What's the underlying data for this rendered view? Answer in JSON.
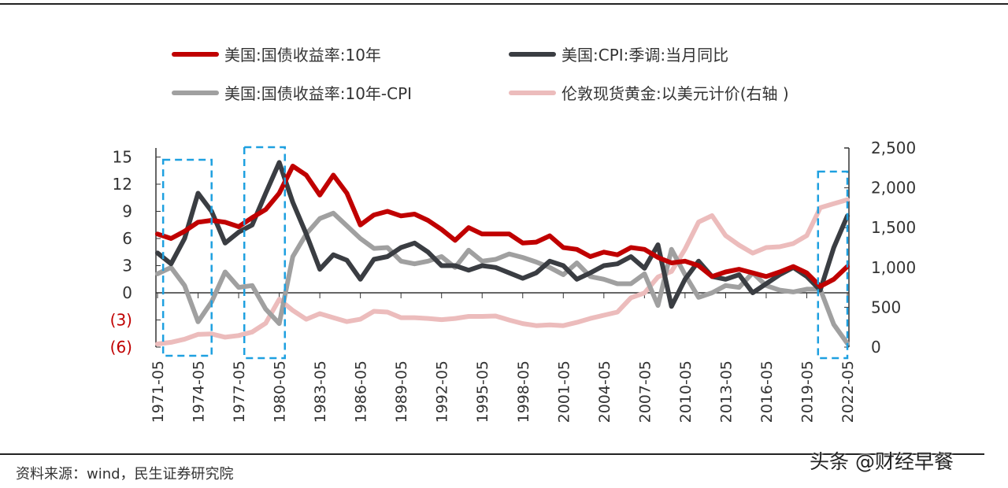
{
  "chart_data": {
    "type": "line",
    "legend_position": "top",
    "grid": false,
    "x": [
      "1971-05",
      "1972-05",
      "1973-05",
      "1974-05",
      "1975-05",
      "1976-05",
      "1977-05",
      "1978-05",
      "1979-05",
      "1980-05",
      "1981-05",
      "1982-05",
      "1983-05",
      "1984-05",
      "1985-05",
      "1986-05",
      "1987-05",
      "1988-05",
      "1989-05",
      "1990-05",
      "1991-05",
      "1992-05",
      "1993-05",
      "1994-05",
      "1995-05",
      "1996-05",
      "1997-05",
      "1998-05",
      "1999-05",
      "2000-05",
      "2001-05",
      "2002-05",
      "2003-05",
      "2004-05",
      "2005-05",
      "2006-05",
      "2007-05",
      "2008-05",
      "2009-05",
      "2010-05",
      "2011-05",
      "2012-05",
      "2013-05",
      "2014-05",
      "2015-05",
      "2016-05",
      "2017-05",
      "2018-05",
      "2019-05",
      "2020-05",
      "2021-05",
      "2022-05"
    ],
    "x_tick_labels": [
      "1971-05",
      "1974-05",
      "1977-05",
      "1980-05",
      "1983-05",
      "1986-05",
      "1989-05",
      "1992-05",
      "1995-05",
      "1998-05",
      "2001-05",
      "2004-05",
      "2007-05",
      "2010-05",
      "2013-05",
      "2016-05",
      "2019-05",
      "2022-05"
    ],
    "y_left": {
      "ylim": [
        -6,
        16
      ],
      "tick_values": [
        15,
        12,
        9,
        6,
        3,
        0,
        -3,
        -6
      ],
      "tick_labels": [
        "15",
        "12",
        "9",
        "6",
        "3",
        "0",
        "(3)",
        "(6)"
      ],
      "negative_label_color": "#c00000"
    },
    "y_right": {
      "ylim": [
        0,
        2500
      ],
      "tick_values": [
        2500,
        2000,
        1500,
        1000,
        500,
        0
      ],
      "tick_labels": [
        "2,500",
        "2,000",
        "1,500",
        "1,000",
        "500",
        "0"
      ]
    },
    "series": [
      {
        "name": "美国:国债收益率:10年",
        "color": "#c00000",
        "axis": "left",
        "values": [
          6.5,
          6.0,
          6.8,
          7.8,
          8.0,
          7.8,
          7.3,
          8.3,
          9.2,
          11.0,
          14.0,
          13.0,
          10.8,
          13.0,
          11.0,
          7.5,
          8.6,
          9.0,
          8.5,
          8.7,
          8.0,
          7.0,
          5.8,
          7.2,
          6.5,
          6.5,
          6.5,
          5.5,
          5.6,
          6.3,
          5.0,
          4.8,
          4.0,
          4.5,
          4.2,
          5.0,
          4.8,
          3.9,
          3.3,
          3.5,
          3.0,
          1.8,
          2.3,
          2.6,
          2.2,
          1.8,
          2.3,
          2.9,
          2.2,
          0.7,
          1.5,
          2.9
        ]
      },
      {
        "name": "美国:CPI:季调:当月同比",
        "color": "#3a3d42",
        "axis": "left",
        "values": [
          4.4,
          3.2,
          6.0,
          11.0,
          9.0,
          5.5,
          6.7,
          7.5,
          11.0,
          14.4,
          10.0,
          6.5,
          2.6,
          4.2,
          3.6,
          1.5,
          3.7,
          4.0,
          5.0,
          5.5,
          4.5,
          3.0,
          3.0,
          2.5,
          3.0,
          2.8,
          2.2,
          1.6,
          2.2,
          3.5,
          3.0,
          1.5,
          2.2,
          3.0,
          3.2,
          4.0,
          2.7,
          5.3,
          -1.5,
          1.5,
          3.5,
          1.8,
          1.5,
          2.0,
          0.0,
          1.0,
          2.0,
          2.8,
          1.8,
          0.3,
          5.0,
          8.5
        ]
      },
      {
        "name": "美国:国债收益率:10年-CPI",
        "color": "#a0a0a0",
        "axis": "left",
        "values": [
          2.1,
          2.8,
          0.8,
          -3.2,
          -1.0,
          2.3,
          0.6,
          0.8,
          -1.8,
          -3.4,
          4.0,
          6.5,
          8.2,
          8.8,
          7.4,
          6.0,
          4.9,
          5.0,
          3.5,
          3.2,
          3.5,
          4.0,
          2.8,
          4.7,
          3.5,
          3.7,
          4.3,
          3.9,
          3.4,
          2.8,
          2.0,
          3.3,
          1.8,
          1.5,
          1.0,
          1.0,
          2.1,
          -1.4,
          4.8,
          2.0,
          -0.5,
          0.0,
          0.8,
          0.6,
          2.2,
          0.8,
          0.3,
          0.1,
          0.4,
          0.4,
          -3.5,
          -5.6
        ]
      },
      {
        "name": "伦敦现货黄金:以美元计价(右轴 )",
        "color": "#ecbcbc",
        "axis": "right",
        "values": [
          40,
          60,
          100,
          160,
          165,
          125,
          145,
          190,
          300,
          600,
          460,
          350,
          420,
          370,
          320,
          350,
          450,
          440,
          370,
          370,
          360,
          345,
          360,
          385,
          385,
          390,
          340,
          295,
          270,
          280,
          270,
          310,
          360,
          400,
          440,
          620,
          680,
          880,
          950,
          1230,
          1570,
          1650,
          1400,
          1280,
          1180,
          1250,
          1260,
          1300,
          1400,
          1750,
          1800,
          1850
        ]
      }
    ],
    "highlight_periods": [
      [
        "1971-10",
        "1975-05"
      ],
      [
        "1977-10",
        "1980-10"
      ],
      [
        "2020-03",
        "2022-05"
      ]
    ],
    "highlight_color": "#1ea0e0"
  },
  "footer": {
    "source": "资料来源：wind，民生证券研究院",
    "watermark": "头条 @财经早餐"
  }
}
